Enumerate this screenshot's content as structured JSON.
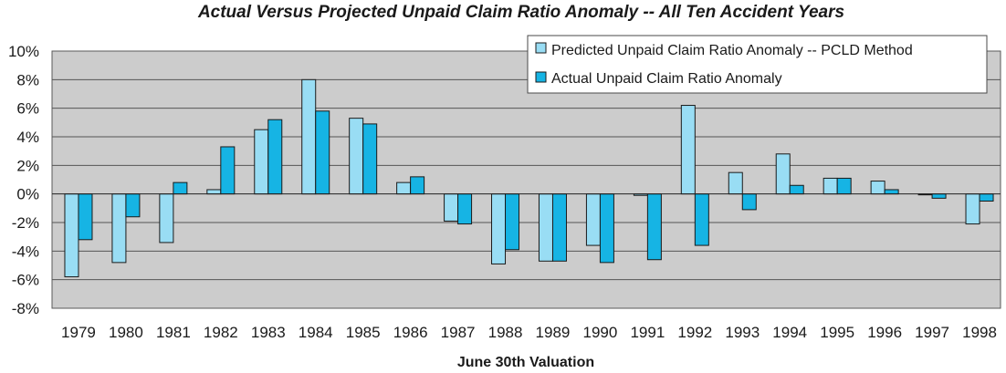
{
  "chart_data": {
    "type": "bar",
    "title": "Actual Versus Projected Unpaid Claim Ratio Anomaly -- All Ten Accident Years",
    "xlabel": "June 30th Valuation",
    "ylabel": "",
    "ylim": [
      -8,
      10
    ],
    "yticks": [
      10,
      8,
      6,
      4,
      2,
      0,
      -2,
      -4,
      -6,
      -8
    ],
    "ytick_labels": [
      "10%",
      "8%",
      "6%",
      "4%",
      "2%",
      "0%",
      "-2%",
      "-4%",
      "-6%",
      "-8%"
    ],
    "categories": [
      "1979",
      "1980",
      "1981",
      "1982",
      "1983",
      "1984",
      "1985",
      "1986",
      "1987",
      "1988",
      "1989",
      "1990",
      "1991",
      "1992",
      "1993",
      "1994",
      "1995",
      "1996",
      "1997",
      "1998"
    ],
    "series": [
      {
        "name": "Predicted Unpaid Claim Ratio Anomaly -- PCLD Method",
        "color": "#99ddf4",
        "values": [
          -5.8,
          -4.8,
          -3.4,
          0.3,
          4.5,
          8.0,
          5.3,
          0.8,
          -1.9,
          -4.9,
          -4.7,
          -3.6,
          -0.1,
          6.2,
          1.5,
          2.8,
          1.1,
          0.9,
          0.0,
          -2.1
        ]
      },
      {
        "name": "Actual Unpaid Claim Ratio Anomaly",
        "color": "#16b4e4",
        "values": [
          -3.2,
          -1.6,
          0.8,
          3.3,
          5.2,
          5.8,
          4.9,
          1.2,
          -2.1,
          -3.9,
          -4.7,
          -4.8,
          -4.6,
          -3.6,
          -1.1,
          0.6,
          1.1,
          0.3,
          -0.3,
          -0.5
        ]
      }
    ],
    "grid": true,
    "legend": "top-right",
    "plot_background": "#cccccc"
  }
}
